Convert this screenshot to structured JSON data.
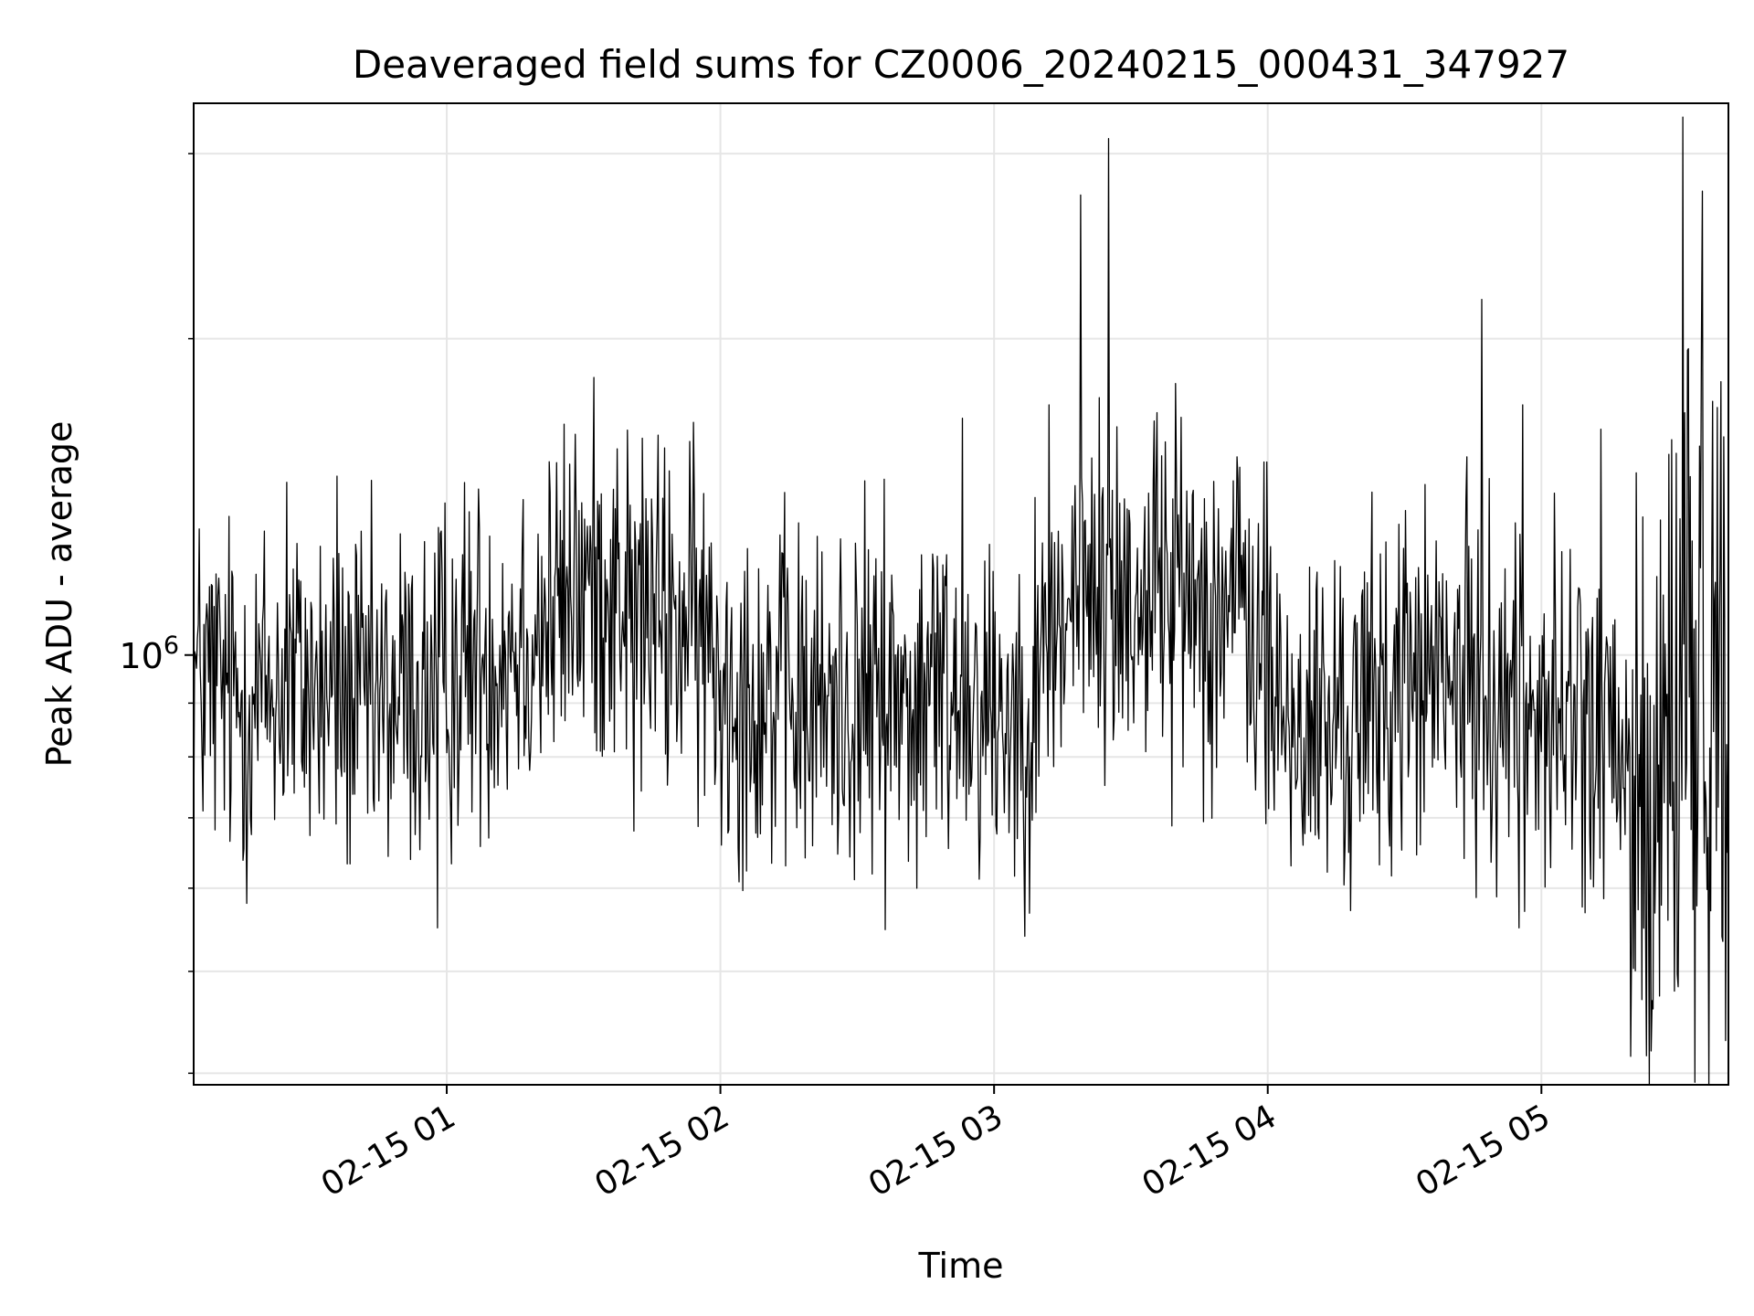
{
  "chart_data": {
    "type": "line",
    "title": "Deaveraged field sums for CZ0006_20240215_000431_347927",
    "xlabel": "Time",
    "ylabel": "Peak ADU - average",
    "y_scale": "log",
    "ylim": [
      390000,
      3350000
    ],
    "xlim": [
      "2024-02-15 00:04:31",
      "2024-02-15 05:41:00"
    ],
    "x_tick_labels": [
      "02-15 01",
      "02-15 02",
      "02-15 03",
      "02-15 04",
      "02-15 05"
    ],
    "x_ticks": [
      "2024-02-15 01:00",
      "2024-02-15 02:00",
      "2024-02-15 03:00",
      "2024-02-15 04:00",
      "2024-02-15 05:00"
    ],
    "y_major_tick_labels": [
      "10^6"
    ],
    "y_major_ticks": [
      1000000
    ],
    "y_minor_ticks": [
      400000,
      500000,
      600000,
      700000,
      800000,
      900000,
      2000000,
      3000000
    ],
    "grid": true,
    "legend": "none",
    "line_color": "#000000",
    "series": [
      {
        "x": [
          "00:04",
          "00:10",
          "00:15",
          "00:20",
          "00:25",
          "00:30",
          "00:35",
          "00:40",
          "00:45",
          "00:50",
          "00:55",
          "01:00",
          "01:05",
          "01:10",
          "01:15",
          "01:20",
          "01:25",
          "01:30",
          "01:35",
          "01:40",
          "01:45",
          "01:50",
          "01:55",
          "02:00",
          "02:05",
          "02:10",
          "02:15",
          "02:20",
          "02:25",
          "02:30",
          "02:35",
          "02:40",
          "02:45",
          "02:50",
          "02:55",
          "03:00",
          "03:05",
          "03:10",
          "03:15",
          "03:20",
          "03:25",
          "03:30",
          "03:35",
          "03:40",
          "03:45",
          "03:50",
          "03:55",
          "04:00",
          "04:05",
          "04:10",
          "04:15",
          "04:20",
          "04:25",
          "04:30",
          "04:35",
          "04:40",
          "04:45",
          "04:50",
          "04:55",
          "05:00",
          "05:05",
          "05:10",
          "05:15",
          "05:20",
          "05:25",
          "05:30",
          "05:35",
          "05:41"
        ],
        "values": [
          950000,
          930000,
          900000,
          920000,
          940000,
          930000,
          910000,
          900000,
          880000,
          920000,
          900000,
          960000,
          990000,
          1010000,
          1040000,
          1060000,
          1100000,
          1150000,
          1180000,
          1120000,
          1090000,
          1070000,
          1050000,
          960000,
          940000,
          920000,
          900000,
          880000,
          900000,
          910000,
          900000,
          900000,
          920000,
          930000,
          940000,
          900000,
          880000,
          930000,
          1090000,
          1150000,
          1120000,
          1130000,
          1170000,
          1160000,
          1140000,
          1120000,
          1100000,
          960000,
          860000,
          840000,
          850000,
          880000,
          900000,
          960000,
          950000,
          930000,
          940000,
          920000,
          910000,
          880000,
          870000,
          860000,
          820000,
          720000,
          690000,
          900000,
          1000000,
          900000
        ],
        "spikes": [
          {
            "x": "00:25",
            "y": 1460000
          },
          {
            "x": "00:36",
            "y": 1480000
          },
          {
            "x": "00:58",
            "y": 550000
          },
          {
            "x": "01:28",
            "y": 1320000
          },
          {
            "x": "01:41",
            "y": 680000
          },
          {
            "x": "02:36",
            "y": 1470000
          },
          {
            "x": "02:43",
            "y": 600000
          },
          {
            "x": "02:53",
            "y": 1680000
          },
          {
            "x": "03:12",
            "y": 1730000
          },
          {
            "x": "03:19",
            "y": 2740000
          },
          {
            "x": "03:25",
            "y": 3100000
          },
          {
            "x": "03:35",
            "y": 1670000
          },
          {
            "x": "03:52",
            "y": 1320000
          },
          {
            "x": "04:05",
            "y": 630000
          },
          {
            "x": "04:47",
            "y": 2180000
          },
          {
            "x": "04:55",
            "y": 550000
          },
          {
            "x": "04:56",
            "y": 1730000
          },
          {
            "x": "05:13",
            "y": 1640000
          },
          {
            "x": "05:22",
            "y": 470000
          },
          {
            "x": "05:24",
            "y": 420000
          },
          {
            "x": "05:31",
            "y": 3250000
          },
          {
            "x": "05:32",
            "y": 1950000
          }
        ]
      }
    ]
  }
}
